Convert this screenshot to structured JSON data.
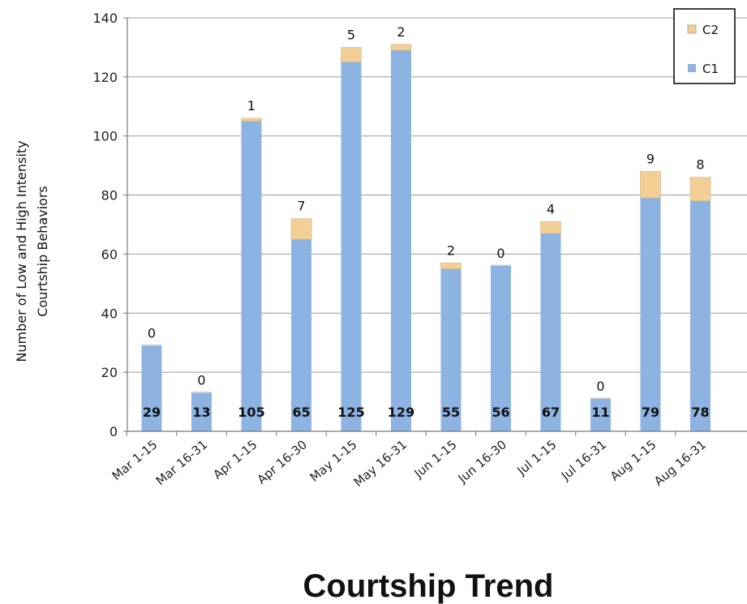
{
  "chart_data": {
    "type": "bar",
    "stacked": true,
    "title": "Courtship Trend",
    "xlabel": "",
    "ylabel_line1": "Number of Low and High  Intensity",
    "ylabel_line2": "Courtship Behaviors",
    "ylim": [
      0,
      140
    ],
    "yticks": [
      0,
      20,
      40,
      60,
      80,
      100,
      120,
      140
    ],
    "grid": true,
    "legend_position": "top-right",
    "categories": [
      "Mar 1-15",
      "Mar 16-31",
      "Apr 1-15",
      "Apr 16-30",
      "May 1-15",
      "May 16-31",
      "Jun 1-15",
      "Jun 16-30",
      "Jul 1-15",
      "Jul 16-31",
      "Aug 1-15",
      "Aug 16-31"
    ],
    "series": [
      {
        "name": "C1",
        "color": "#8db3e2",
        "values": [
          29,
          13,
          105,
          65,
          125,
          129,
          55,
          56,
          67,
          11,
          79,
          78
        ]
      },
      {
        "name": "C2",
        "color": "#f2cf95",
        "values": [
          0,
          0,
          1,
          7,
          5,
          2,
          2,
          0,
          4,
          0,
          9,
          8
        ]
      }
    ]
  }
}
